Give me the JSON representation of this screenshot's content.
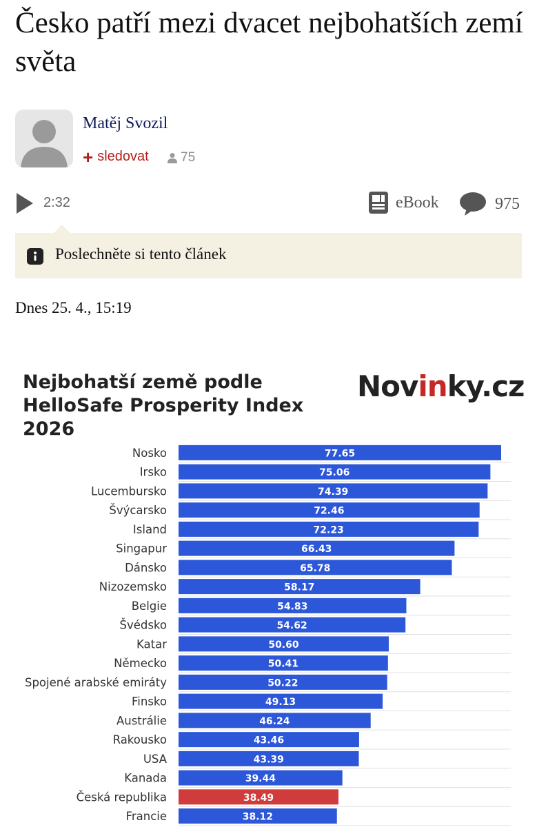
{
  "article": {
    "title": "Česko patří mezi dvacet nejbohatších zemí světa",
    "author": "Matěj Svozil",
    "follow_label": "sledovat",
    "followers": "75",
    "audio_duration": "2:32",
    "ebook_label": "eBook",
    "comments_count": "975",
    "listen_label": "Poslechněte si tento článek",
    "date": "Dnes 25. 4., 15:19"
  },
  "brand": {
    "part1": "Nov",
    "part2": "in",
    "part3": "ky.cz"
  },
  "colors": {
    "bar": "#2c57d9",
    "highlight": "#d03b3b",
    "brand_red": "#c62828",
    "grid": "#e0e0e0"
  },
  "chart_data": {
    "type": "bar",
    "orientation": "horizontal",
    "title": "Nejbohatší země podle HelloSafe Prosperity Index 2026",
    "xlabel": "",
    "ylabel": "",
    "xlim": [
      0,
      80
    ],
    "categories": [
      "Nosko",
      "Irsko",
      "Lucembursko",
      "Švýcarsko",
      "Island",
      "Singapur",
      "Dánsko",
      "Nizozemsko",
      "Belgie",
      "Švédsko",
      "Katar",
      "Německo",
      "Spojené arabské emiráty",
      "Finsko",
      "Austrálie",
      "Rakousko",
      "USA",
      "Kanada",
      "Česká republika",
      "Francie"
    ],
    "values": [
      77.65,
      75.06,
      74.39,
      72.46,
      72.23,
      66.43,
      65.78,
      58.17,
      54.83,
      54.62,
      50.6,
      50.41,
      50.22,
      49.13,
      46.24,
      43.46,
      43.39,
      39.44,
      38.49,
      38.12
    ],
    "value_labels": [
      "77.65",
      "75.06",
      "74.39",
      "72.46",
      "72.23",
      "66.43",
      "65.78",
      "58.17",
      "54.83",
      "54.62",
      "50.60",
      "50.41",
      "50.22",
      "49.13",
      "46.24",
      "43.46",
      "43.39",
      "39.44",
      "38.49",
      "38.12"
    ],
    "highlight": "Česká republika"
  }
}
